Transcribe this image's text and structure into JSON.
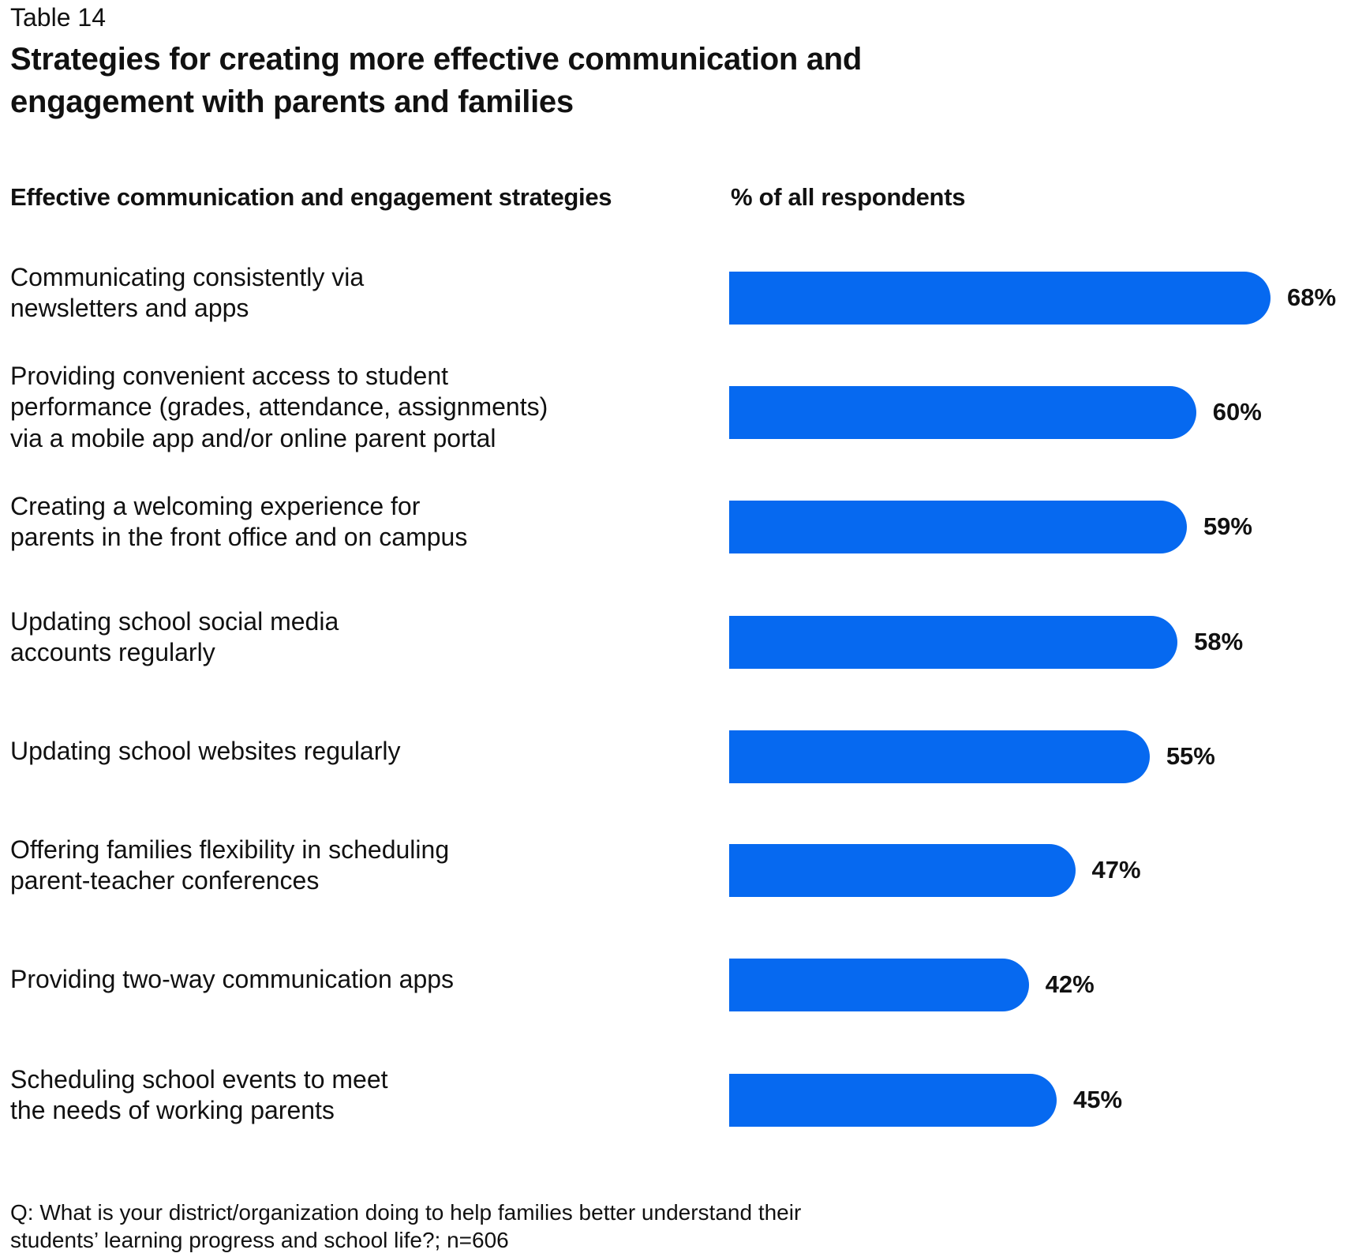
{
  "table_label": "Table 14",
  "title": "Strategies for creating more effective communication and engagement with parents and families",
  "chart_data": {
    "type": "bar",
    "orientation": "horizontal",
    "column_headers": {
      "category": "Effective communication and engagement strategies",
      "value": "% of all respondents"
    },
    "categories": [
      "Communicating consistently via\nnewsletters and apps",
      "Providing convenient access to student\nperformance (grades, attendance, assignments)\nvia a mobile app and/or online parent portal",
      "Creating a welcoming experience for\nparents in the front office and on campus",
      "Updating school social media\naccounts regularly",
      "Updating school websites regularly",
      "Offering families flexibility in scheduling\nparent-teacher conferences",
      "Providing two-way communication apps",
      "Scheduling school events to meet\nthe needs of working parents"
    ],
    "values": [
      68,
      60,
      59,
      58,
      55,
      47,
      42,
      45
    ],
    "value_labels": [
      "68%",
      "60%",
      "59%",
      "58%",
      "55%",
      "47%",
      "42%",
      "45%"
    ],
    "unit": "%",
    "bar_color": "#0669F0",
    "grid": false,
    "legend": "none"
  },
  "footnote": "Q: What is your district/organization doing to help families better understand their students’ learning progress and school life?; n=606"
}
